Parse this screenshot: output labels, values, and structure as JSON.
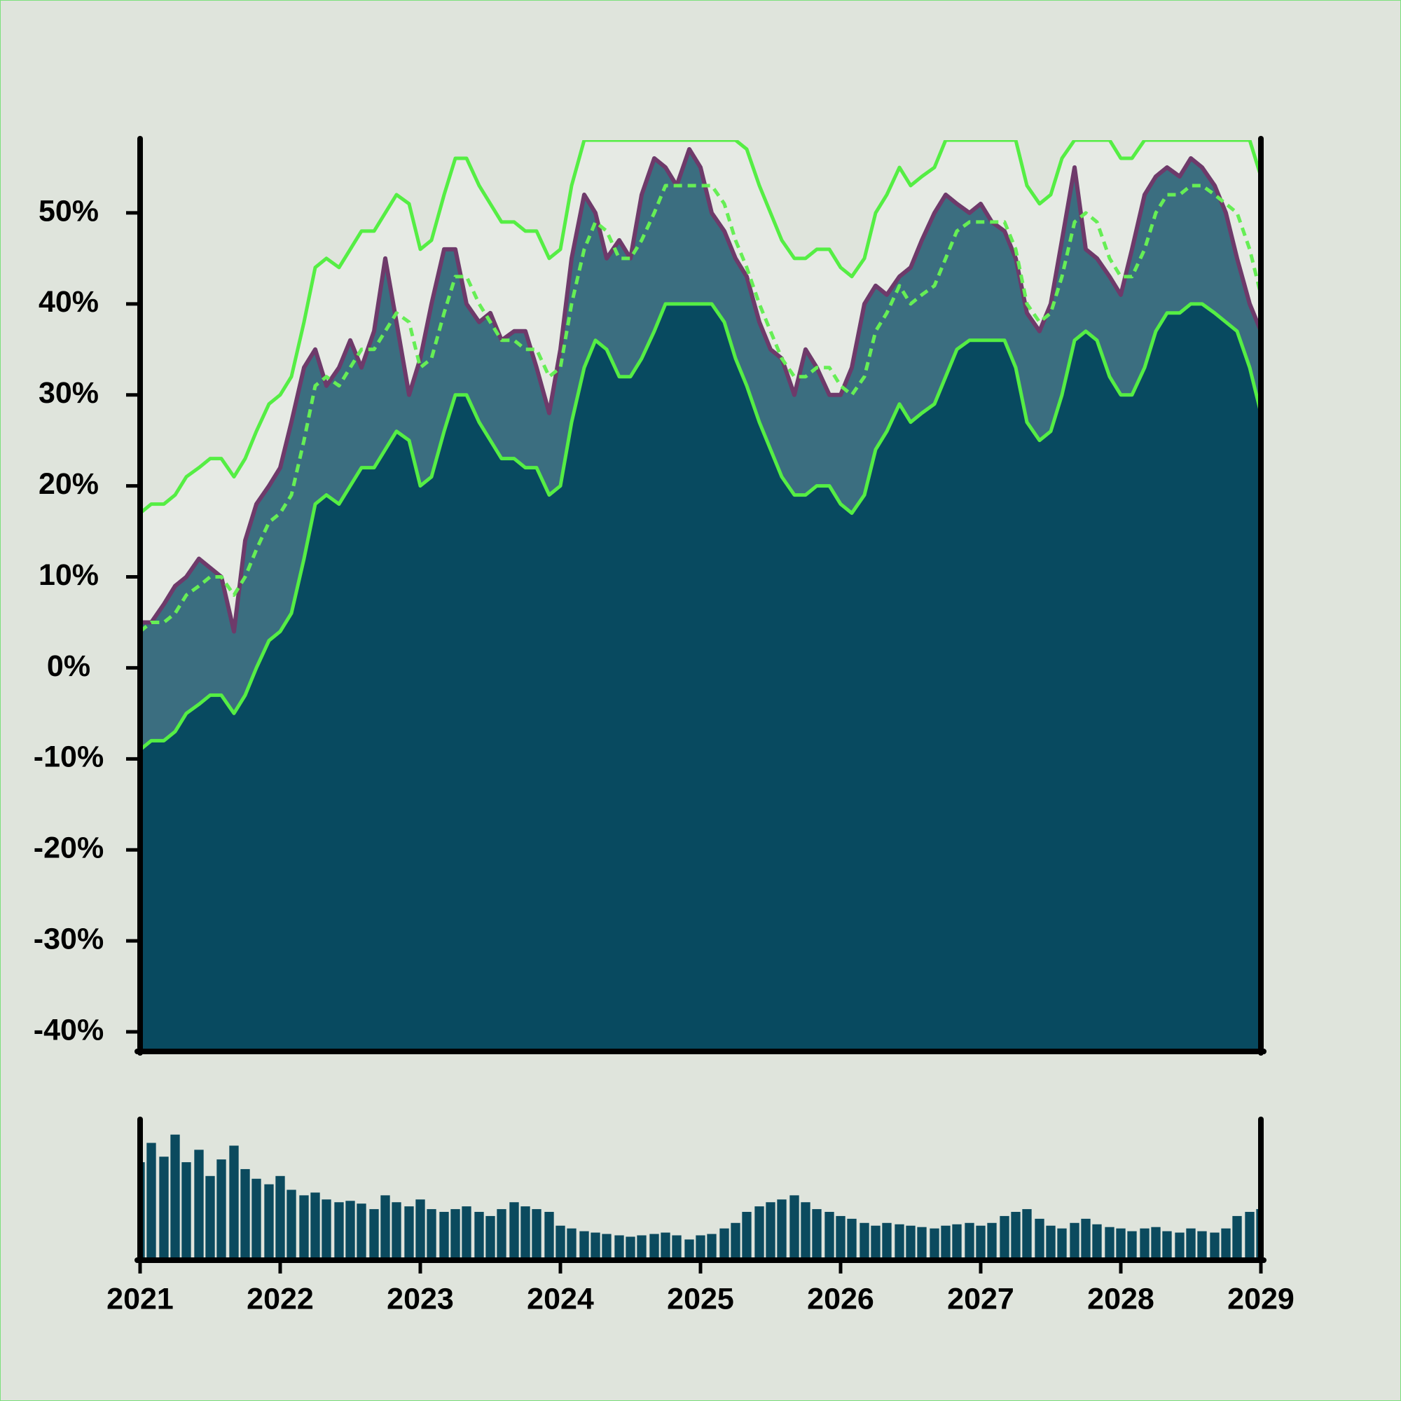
{
  "chart_data": [
    {
      "type": "band-area",
      "x": [
        2021.0,
        2021.08,
        2021.17,
        2021.25,
        2021.33,
        2021.42,
        2021.5,
        2021.58,
        2021.67,
        2021.75,
        2021.83,
        2021.92,
        2022.0,
        2022.08,
        2022.17,
        2022.25,
        2022.33,
        2022.42,
        2022.5,
        2022.58,
        2022.67,
        2022.75,
        2022.83,
        2022.92,
        2023.0,
        2023.08,
        2023.17,
        2023.25,
        2023.33,
        2023.42,
        2023.5,
        2023.58,
        2023.67,
        2023.75,
        2023.83,
        2023.92,
        2024.0,
        2024.08,
        2024.17,
        2024.25,
        2024.33,
        2024.42,
        2024.5,
        2024.58,
        2024.67,
        2024.75,
        2024.83,
        2024.92,
        2025.0,
        2025.08,
        2025.17,
        2025.25,
        2025.33,
        2025.42,
        2025.5,
        2025.58,
        2025.67,
        2025.75,
        2025.83,
        2025.92,
        2026.0,
        2026.08,
        2026.17,
        2026.25,
        2026.33,
        2026.42,
        2026.5,
        2026.58,
        2026.67,
        2026.75,
        2026.83,
        2026.92,
        2027.0,
        2027.08,
        2027.17,
        2027.25,
        2027.33,
        2027.42,
        2027.5,
        2027.58,
        2027.67,
        2027.75,
        2027.83,
        2027.92,
        2028.0,
        2028.08,
        2028.17,
        2028.25,
        2028.33,
        2028.42,
        2028.5,
        2028.58,
        2028.67,
        2028.75,
        2028.83,
        2028.92,
        2029.0
      ],
      "series": [
        {
          "color": "#55ee44",
          "fill": "#e6eae4",
          "dash": false,
          "values": [
            17,
            18,
            18,
            19,
            21,
            22,
            23,
            23,
            21,
            23,
            26,
            29,
            30,
            32,
            38,
            44,
            45,
            44,
            46,
            48,
            48,
            50,
            52,
            51,
            46,
            47,
            52,
            56,
            56,
            53,
            51,
            49,
            49,
            48,
            48,
            45,
            46,
            53,
            58,
            58,
            58,
            58,
            58,
            58,
            58,
            58,
            58,
            58,
            58,
            58,
            58,
            58,
            57,
            53,
            50,
            47,
            45,
            45,
            46,
            46,
            44,
            43,
            45,
            50,
            52,
            55,
            53,
            54,
            55,
            58,
            58,
            58,
            58,
            58,
            58,
            58,
            53,
            51,
            52,
            56,
            58,
            58,
            58,
            58,
            56,
            56,
            58,
            58,
            58,
            58,
            58,
            58,
            58,
            58,
            58,
            58,
            54
          ]
        },
        {
          "color": "#6e3a6a",
          "fill": "#3b6e80",
          "dash": false,
          "values": [
            5,
            5,
            7,
            9,
            10,
            12,
            11,
            10,
            4,
            14,
            18,
            20,
            22,
            27,
            33,
            35,
            31,
            33,
            36,
            33,
            37,
            45,
            38,
            30,
            34,
            40,
            46,
            46,
            40,
            38,
            39,
            36,
            37,
            37,
            33,
            28,
            35,
            45,
            52,
            50,
            45,
            47,
            45,
            52,
            56,
            55,
            53,
            57,
            55,
            50,
            48,
            45,
            43,
            38,
            35,
            34,
            30,
            35,
            33,
            30,
            30,
            33,
            40,
            42,
            41,
            43,
            44,
            47,
            50,
            52,
            51,
            50,
            51,
            49,
            48,
            45,
            39,
            37,
            40,
            47,
            55,
            46,
            45,
            43,
            41,
            46,
            52,
            54,
            55,
            54,
            56,
            55,
            53,
            50,
            45,
            40,
            37
          ]
        },
        {
          "color": "#55ee44",
          "fill": "#084a60",
          "dash": false,
          "values": [
            -9,
            -8,
            -8,
            -7,
            -5,
            -4,
            -3,
            -3,
            -5,
            -3,
            0,
            3,
            4,
            6,
            12,
            18,
            19,
            18,
            20,
            22,
            22,
            24,
            26,
            25,
            20,
            21,
            26,
            30,
            30,
            27,
            25,
            23,
            23,
            22,
            22,
            19,
            20,
            27,
            33,
            36,
            35,
            32,
            32,
            34,
            37,
            40,
            40,
            40,
            40,
            40,
            38,
            34,
            31,
            27,
            24,
            21,
            19,
            19,
            20,
            20,
            18,
            17,
            19,
            24,
            26,
            29,
            27,
            28,
            29,
            32,
            35,
            36,
            36,
            36,
            36,
            33,
            27,
            25,
            26,
            30,
            36,
            37,
            36,
            32,
            30,
            30,
            33,
            37,
            39,
            39,
            40,
            40,
            39,
            38,
            37,
            33,
            28
          ]
        },
        {
          "color": "#66ee55",
          "fill": null,
          "dash": true,
          "values": [
            4,
            5,
            5,
            6,
            8,
            9,
            10,
            10,
            8,
            10,
            13,
            16,
            17,
            19,
            25,
            31,
            32,
            31,
            33,
            35,
            35,
            37,
            39,
            38,
            33,
            34,
            39,
            43,
            43,
            40,
            38,
            36,
            36,
            35,
            35,
            32,
            33,
            40,
            46,
            49,
            48,
            45,
            45,
            47,
            50,
            53,
            53,
            53,
            53,
            53,
            51,
            47,
            44,
            40,
            37,
            34,
            32,
            32,
            33,
            33,
            31,
            30,
            32,
            37,
            39,
            42,
            40,
            41,
            42,
            45,
            48,
            49,
            49,
            49,
            49,
            46,
            40,
            38,
            39,
            43,
            49,
            50,
            49,
            45,
            43,
            43,
            46,
            50,
            52,
            52,
            53,
            53,
            52,
            51,
            50,
            46,
            41
          ]
        }
      ],
      "xlim": [
        2021,
        2029
      ],
      "ylim": [
        -42,
        58
      ],
      "yticks": [
        {
          "value": -40,
          "label": "-40%"
        },
        {
          "value": -30,
          "label": "-30%"
        },
        {
          "value": -20,
          "label": "-20%"
        },
        {
          "value": -10,
          "label": "-10%"
        },
        {
          "value": 0,
          "label": "0%"
        },
        {
          "value": 10,
          "label": "10%"
        },
        {
          "value": 20,
          "label": "20%"
        },
        {
          "value": 30,
          "label": "30%"
        },
        {
          "value": 40,
          "label": "40%"
        },
        {
          "value": 50,
          "label": "50%"
        }
      ]
    },
    {
      "type": "bar",
      "color": "#0b4a5e",
      "values": [
        70,
        84,
        74,
        90,
        70,
        79,
        60,
        72,
        82,
        65,
        58,
        54,
        60,
        50,
        46,
        48,
        43,
        41,
        42,
        40,
        36,
        46,
        41,
        38,
        43,
        36,
        34,
        36,
        38,
        34,
        31,
        36,
        41,
        38,
        36,
        34,
        24,
        22,
        20,
        19,
        18,
        17,
        16,
        17,
        18,
        19,
        17,
        14,
        17,
        18,
        22,
        26,
        34,
        38,
        41,
        43,
        46,
        41,
        36,
        34,
        31,
        29,
        26,
        24,
        26,
        25,
        24,
        23,
        22,
        24,
        25,
        26,
        24,
        26,
        31,
        34,
        36,
        29,
        24,
        22,
        26,
        29,
        25,
        23,
        22,
        20,
        22,
        23,
        20,
        19,
        22,
        20,
        19,
        22,
        31,
        34,
        36
      ],
      "xlim": [
        2021,
        2029
      ],
      "xticks": [
        2021,
        2022,
        2023,
        2024,
        2025,
        2026,
        2027,
        2028,
        2029
      ],
      "ylim": [
        0,
        100
      ]
    }
  ]
}
